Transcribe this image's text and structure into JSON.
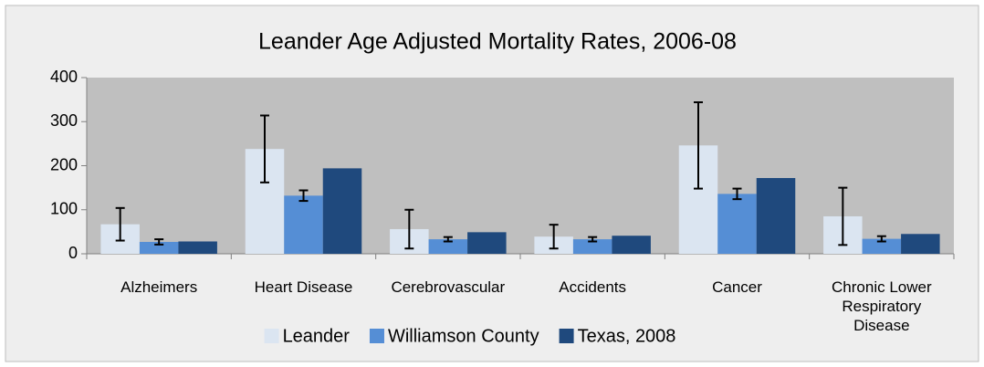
{
  "chart_data": {
    "type": "bar",
    "title": "Leander Age Adjusted Mortality Rates, 2006-08",
    "categories": [
      "Alzheimers",
      "Heart Disease",
      "Cerebrovascular",
      "Accidents",
      "Cancer",
      "Chronic Lower Respiratory Disease"
    ],
    "series": [
      {
        "name": "Leander",
        "color": "#dbe5f1",
        "values": [
          67,
          238,
          56,
          39,
          246,
          85
        ],
        "errors": [
          37,
          76,
          44,
          27,
          98,
          65
        ]
      },
      {
        "name": "Williamson County",
        "color": "#558ed5",
        "values": [
          27,
          132,
          33,
          33,
          136,
          34
        ],
        "errors": [
          6,
          12,
          5,
          5,
          12,
          6
        ]
      },
      {
        "name": "Texas, 2008",
        "color": "#1f497d",
        "values": [
          28,
          194,
          49,
          41,
          172,
          45
        ]
      }
    ],
    "ylim": [
      0,
      400
    ],
    "yticks": [
      0,
      100,
      200,
      300,
      400
    ],
    "legend": "bottom"
  }
}
